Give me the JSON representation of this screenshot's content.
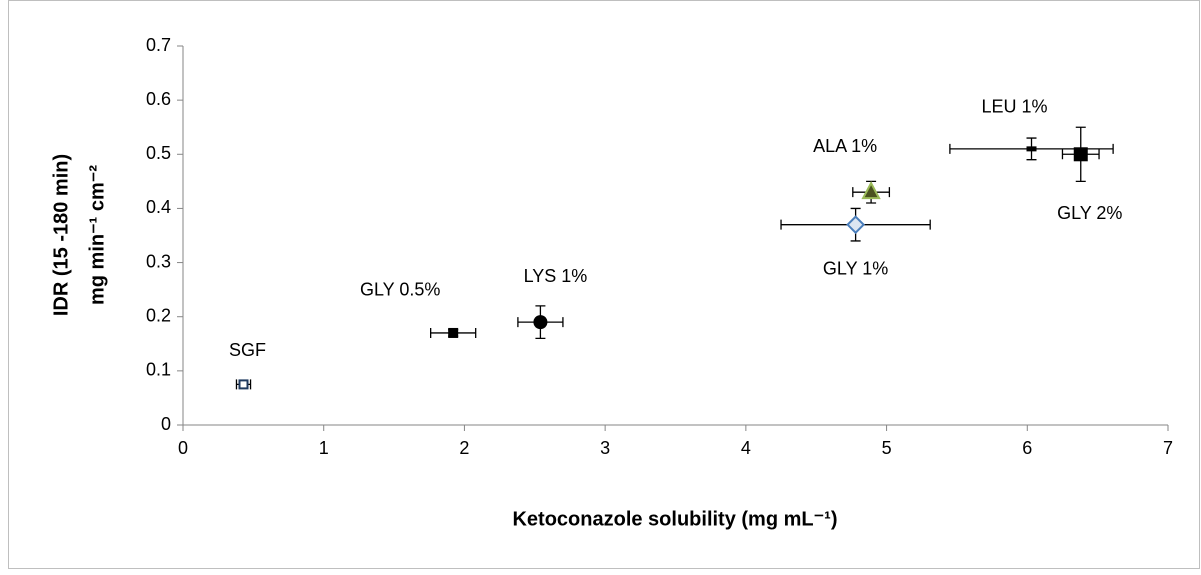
{
  "chart_data": {
    "type": "scatter",
    "x_label": "Ketoconazole solubility (mg mL⁻¹)",
    "y_label": [
      "IDR (15 -180 min)",
      "mg min⁻¹ cm⁻²"
    ],
    "xlim": [
      0,
      7
    ],
    "xticks": [
      0,
      1,
      2,
      3,
      4,
      5,
      6,
      7
    ],
    "ylim": [
      0,
      0.7
    ],
    "yticks": [
      0,
      0.1,
      0.2,
      0.3,
      0.4,
      0.5,
      0.6,
      0.7
    ],
    "series": [
      {
        "name": "SGF",
        "marker": "open-square",
        "color": "#1f3a5f",
        "x": [
          0.43
        ],
        "y": [
          0.075
        ],
        "xerr": [
          0.05
        ],
        "yerr": [
          0.005
        ]
      },
      {
        "name": "GLY 0.5%",
        "marker": "small-square",
        "color": "#000000",
        "x": [
          1.92
        ],
        "y": [
          0.17
        ],
        "xerr": [
          0.16
        ],
        "yerr": [
          0.006
        ]
      },
      {
        "name": "LYS 1%",
        "marker": "circle",
        "color": "#000000",
        "x": [
          2.54
        ],
        "y": [
          0.19
        ],
        "xerr": [
          0.16
        ],
        "yerr": [
          0.03
        ]
      },
      {
        "name": "GLY 1%",
        "marker": "diamond",
        "color": "#4a7ebb",
        "x": [
          4.78
        ],
        "y": [
          0.37
        ],
        "xerr": [
          0.53
        ],
        "yerr": [
          0.03
        ]
      },
      {
        "name": "ALA 1%",
        "marker": "triangle",
        "color": "#4b5320",
        "x": [
          4.89
        ],
        "y": [
          0.43
        ],
        "xerr": [
          0.13
        ],
        "yerr": [
          0.02
        ]
      },
      {
        "name": "LEU 1%",
        "marker": "dash",
        "color": "#000000",
        "x": [
          6.03
        ],
        "y": [
          0.51
        ],
        "xerr": [
          0.58
        ],
        "yerr": [
          0.02
        ]
      },
      {
        "name": "GLY 2%",
        "marker": "square",
        "color": "#000000",
        "x": [
          6.38
        ],
        "y": [
          0.5
        ],
        "xerr": [
          0.13
        ],
        "yerr": [
          0.05
        ]
      }
    ]
  }
}
